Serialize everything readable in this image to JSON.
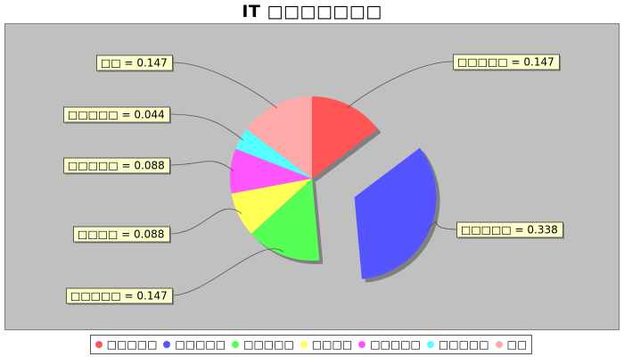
{
  "chart_data": {
    "type": "pie",
    "title": "IT □□□□□□□",
    "exploded_index": 1,
    "slices": [
      {
        "label": "□□□□□",
        "value": 0.147,
        "color": "#ff5555"
      },
      {
        "label": "□□□□□",
        "value": 0.338,
        "color": "#5555ff"
      },
      {
        "label": "□□□□□",
        "value": 0.147,
        "color": "#55ff55"
      },
      {
        "label": "□□□□",
        "value": 0.088,
        "color": "#ffff55"
      },
      {
        "label": "□□□□□",
        "value": 0.088,
        "color": "#ff55ff"
      },
      {
        "label": "□□□□□",
        "value": 0.044,
        "color": "#55ffff"
      },
      {
        "label": "□□",
        "value": 0.147,
        "color": "#ffaaaa"
      }
    ],
    "value_format": "0.000",
    "legend_position": "bottom",
    "plot_background": "#c0c0c0",
    "label_background": "#ffffcc"
  }
}
